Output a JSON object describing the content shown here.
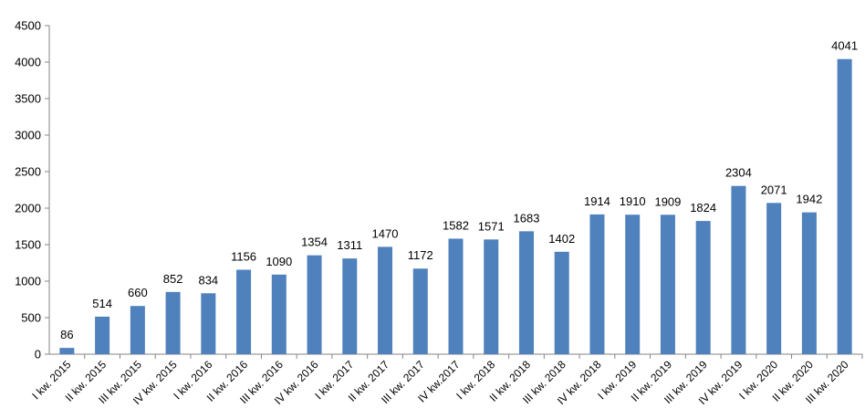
{
  "chart_data": {
    "type": "bar",
    "title": "",
    "xlabel": "",
    "ylabel": "",
    "ylim": [
      0,
      4500
    ],
    "yticks": [
      0,
      500,
      1000,
      1500,
      2000,
      2500,
      3000,
      3500,
      4000,
      4500
    ],
    "grid": false,
    "bar_color": "#4F81BD",
    "categories": [
      "I kw. 2015",
      "II kw. 2015",
      "III kw. 2015",
      "IV kw. 2015",
      "I kw. 2016",
      "II kw. 2016",
      "III kw. 2016",
      "IV kw. 2016",
      "I kw. 2017",
      "II kw. 2017",
      "III kw. 2017",
      "IV kw.2017",
      "I kw. 2018",
      "II kw. 2018",
      "III kw. 2018",
      "IV kw. 2018",
      "I kw. 2019",
      "II kw. 2019",
      "III kw. 2019",
      "IV kw. 2019",
      "I kw. 2020",
      "II kw. 2020",
      "III kw. 2020"
    ],
    "values": [
      86,
      514,
      660,
      852,
      834,
      1156,
      1090,
      1354,
      1311,
      1470,
      1172,
      1582,
      1571,
      1683,
      1402,
      1914,
      1910,
      1909,
      1824,
      2304,
      2071,
      1942,
      4041
    ]
  }
}
